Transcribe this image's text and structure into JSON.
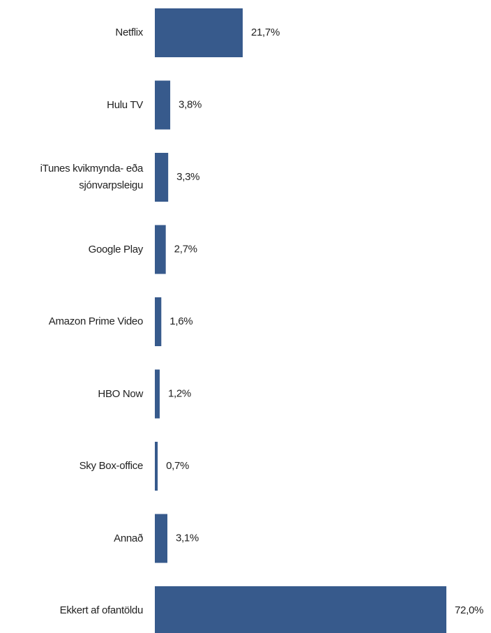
{
  "chart_data": {
    "type": "bar",
    "orientation": "horizontal",
    "categories": [
      "Netflix",
      "Hulu TV",
      "iTunes kvikmynda- eða sjónvarpsleigu",
      "Google Play",
      "Amazon Prime Video",
      "HBO Now",
      "Sky Box-office",
      "Annað",
      "Ekkert af ofantöldu"
    ],
    "values": [
      21.7,
      3.8,
      3.3,
      2.7,
      1.6,
      1.2,
      0.7,
      3.1,
      72.0
    ],
    "value_labels": [
      "21,7%",
      "3,8%",
      "3,3%",
      "2,7%",
      "1,6%",
      "1,2%",
      "0,7%",
      "3,1%",
      "72,0%"
    ],
    "color": "#375a8c"
  }
}
